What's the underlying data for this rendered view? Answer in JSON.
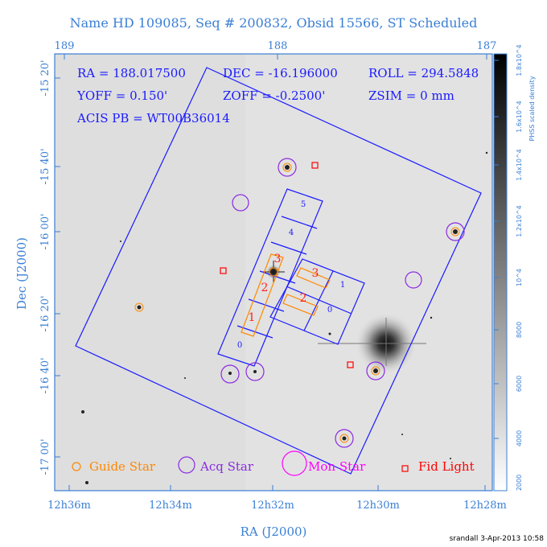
{
  "title": "Name HD 109085, Seq # 200832, Obsid 15566, ST Scheduled",
  "info": {
    "ra": "RA = 188.017500",
    "dec": "DEC = -16.196000",
    "roll": "ROLL = 294.5848",
    "yoff": "YOFF = 0.150'",
    "zoff": "ZOFF = -0.2500'",
    "zsim": "ZSIM = 0 mm",
    "acis": "ACIS PB = WT00B36014"
  },
  "top_axis_ticks": [
    "189",
    "188",
    "187"
  ],
  "bottom_axis_ticks": [
    "12h36m",
    "12h34m",
    "12h32m",
    "12h30m",
    "12h28m"
  ],
  "left_axis_ticks": [
    "-15 20'",
    "-15 40'",
    "-16 00'",
    "-16 20'",
    "-16 40'",
    "-17 00'"
  ],
  "xlabel": "RA (J2000)",
  "ylabel": "Dec (J2000)",
  "colorbar": {
    "title": "PHSS scaled density",
    "ticks": [
      "2000",
      "4000",
      "6000",
      "8000",
      "10^4",
      "1.2x10^4",
      "1.4x10^4",
      "1.6x10^4",
      "1.8x10^4"
    ]
  },
  "chips": {
    "i_labels": [
      "0",
      "1",
      "2",
      "3"
    ],
    "s_labels": [
      "0",
      "1",
      "2",
      "3",
      "4",
      "5"
    ],
    "orange_labels": [
      "1",
      "2",
      "3",
      "2",
      "3"
    ]
  },
  "legend": {
    "guide": "Guide Star",
    "acq": "Acq Star",
    "mon": "Mon Star",
    "fid": "Fid Light"
  },
  "footer": "srandall   3-Apr-2013 10:58",
  "colors": {
    "axis": "#3a7fd5",
    "chip": "#1a1aff",
    "guide": "#ff8800",
    "acq": "#8a2be2",
    "mon": "#ff00ff",
    "fid": "#ff0000"
  }
}
